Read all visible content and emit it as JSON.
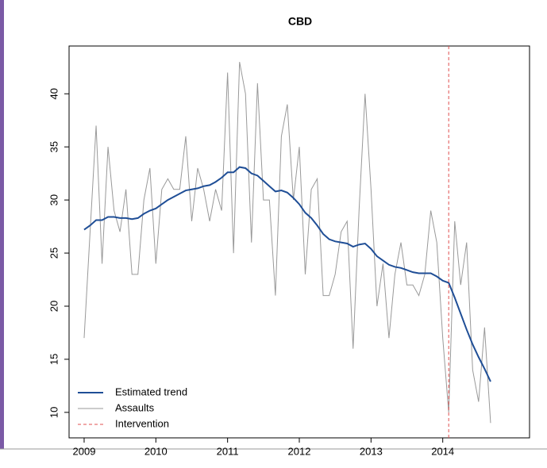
{
  "chart_data": {
    "type": "line",
    "title": "CBD",
    "x": [
      2009,
      2009.083,
      2009.167,
      2009.25,
      2009.333,
      2009.417,
      2009.5,
      2009.583,
      2009.667,
      2009.75,
      2009.833,
      2009.917,
      2010,
      2010.083,
      2010.167,
      2010.25,
      2010.333,
      2010.417,
      2010.5,
      2010.583,
      2010.667,
      2010.75,
      2010.833,
      2010.917,
      2011,
      2011.083,
      2011.167,
      2011.25,
      2011.333,
      2011.417,
      2011.5,
      2011.583,
      2011.667,
      2011.75,
      2011.833,
      2011.917,
      2012,
      2012.083,
      2012.167,
      2012.25,
      2012.333,
      2012.417,
      2012.5,
      2012.583,
      2012.667,
      2012.75,
      2012.833,
      2012.917,
      2013,
      2013.083,
      2013.167,
      2013.25,
      2013.333,
      2013.417,
      2013.5,
      2013.583,
      2013.667,
      2013.75,
      2013.833,
      2013.917,
      2014,
      2014.083,
      2014.167,
      2014.25,
      2014.333,
      2014.417,
      2014.5,
      2014.583,
      2014.667
    ],
    "series": [
      {
        "name": "Estimated trend",
        "color": "#1f4e96",
        "width": 2,
        "values": [
          27.2,
          27.6,
          28.1,
          28.1,
          28.4,
          28.4,
          28.3,
          28.3,
          28.2,
          28.3,
          28.7,
          29.0,
          29.2,
          29.6,
          30.0,
          30.3,
          30.6,
          30.9,
          31.0,
          31.1,
          31.3,
          31.4,
          31.7,
          32.1,
          32.6,
          32.6,
          33.1,
          33.0,
          32.5,
          32.3,
          31.8,
          31.3,
          30.8,
          30.9,
          30.7,
          30.2,
          29.6,
          28.8,
          28.3,
          27.6,
          26.8,
          26.3,
          26.1,
          26.0,
          25.9,
          25.6,
          25.8,
          25.9,
          25.4,
          24.7,
          24.3,
          23.9,
          23.7,
          23.6,
          23.4,
          23.2,
          23.1,
          23.1,
          23.1,
          22.8,
          22.4,
          22.2,
          20.8,
          19.3,
          17.8,
          16.4,
          15.2,
          14.1,
          12.9
        ]
      },
      {
        "name": "Assaults",
        "color": "#999999",
        "width": 1,
        "values": [
          17,
          27,
          37,
          24,
          35,
          29,
          27,
          31,
          23,
          23,
          30,
          33,
          24,
          31,
          32,
          31,
          31,
          36,
          28,
          33,
          31,
          28,
          31,
          29,
          42,
          25,
          43,
          40,
          26,
          41,
          30,
          30,
          21,
          36,
          39,
          30,
          35,
          23,
          31,
          32,
          21,
          21,
          23,
          27,
          28,
          16,
          29,
          40,
          31,
          20,
          24,
          17,
          23,
          26,
          22,
          22,
          21,
          23,
          29,
          26,
          17,
          10,
          28,
          22,
          26,
          14,
          11,
          18,
          9
        ]
      }
    ],
    "intervention": {
      "name": "Intervention",
      "x": 2014.083,
      "color": "#e05050"
    },
    "xlim": [
      2008.79,
      2015.21
    ],
    "xticks": [
      2009,
      2010,
      2011,
      2012,
      2013,
      2014
    ],
    "ylim": [
      7.6,
      44.5
    ],
    "yticks": [
      10,
      15,
      20,
      25,
      30,
      35,
      40
    ],
    "legend": "bottom-left"
  }
}
